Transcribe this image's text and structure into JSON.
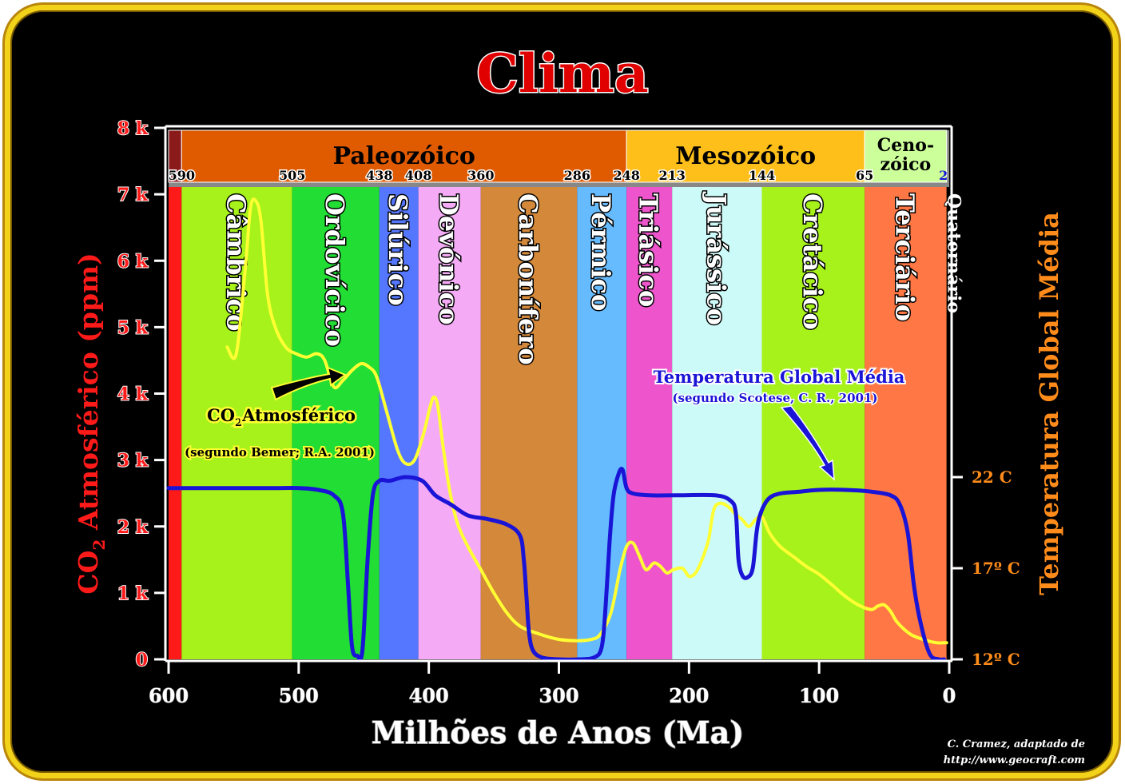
{
  "chart_data": {
    "type": "line",
    "title": "Clima",
    "xlabel": "Milhões de Anos (Ma)",
    "ylabel_left": "CO2 Atmosférico (ppm)",
    "ylabel_left_main": "CO",
    "ylabel_left_sub": "2",
    "ylabel_left_rest": " Atmosférico (ppm)",
    "ylabel_right": "Temperatura Global Média",
    "xlim": [
      600,
      0
    ],
    "ylim": [
      0,
      8000
    ],
    "temp_lim": [
      12,
      22
    ],
    "x_ticks": [
      {
        "v": 600,
        "label": "600"
      },
      {
        "v": 500,
        "label": "500"
      },
      {
        "v": 400,
        "label": "400"
      },
      {
        "v": 300,
        "label": "300"
      },
      {
        "v": 200,
        "label": "200"
      },
      {
        "v": 100,
        "label": "100"
      },
      {
        "v": 0,
        "label": "0"
      }
    ],
    "y_ticks": [
      {
        "v": 0,
        "label": "0"
      },
      {
        "v": 1000,
        "label": "1 k"
      },
      {
        "v": 2000,
        "label": "2 k"
      },
      {
        "v": 3000,
        "label": "3 k"
      },
      {
        "v": 4000,
        "label": "4 k"
      },
      {
        "v": 5000,
        "label": "5 k"
      },
      {
        "v": 6000,
        "label": "6 k"
      },
      {
        "v": 7000,
        "label": "7 k"
      },
      {
        "v": 8000,
        "label": "8 k"
      }
    ],
    "temp_ticks": [
      {
        "v": 12,
        "label": "12º C"
      },
      {
        "v": 17,
        "label": "17º C"
      },
      {
        "v": 22,
        "label": "22 C"
      }
    ],
    "eras": [
      {
        "name": "",
        "from": 600,
        "to": 590,
        "color": "#8b1a1a"
      },
      {
        "name": "Paleozóico",
        "from": 590,
        "to": 248,
        "color": "#e05a00"
      },
      {
        "name": "Mesozóico",
        "from": 248,
        "to": 65,
        "color": "#ffbf1a"
      },
      {
        "name": "Ceno-zóico",
        "line1": "Ceno-",
        "line2": "zóico",
        "from": 65,
        "to": 2,
        "color": "#ccff99"
      }
    ],
    "boundaries": [
      {
        "v": 590,
        "label": "590"
      },
      {
        "v": 505,
        "label": "505"
      },
      {
        "v": 438,
        "label": "438"
      },
      {
        "v": 408,
        "label": "408"
      },
      {
        "v": 360,
        "label": "360"
      },
      {
        "v": 286,
        "label": "286"
      },
      {
        "v": 248,
        "label": "248"
      },
      {
        "v": 213,
        "label": "213"
      },
      {
        "v": 144,
        "label": "144"
      },
      {
        "v": 65,
        "label": "65"
      },
      {
        "v": 2,
        "label": "2"
      }
    ],
    "periods": [
      {
        "name": "",
        "from": 600,
        "to": 590,
        "color": "#ff1a1a"
      },
      {
        "name": "Câmbrico",
        "from": 590,
        "to": 505,
        "color": "#a6f21a"
      },
      {
        "name": "Ordovícico",
        "from": 505,
        "to": 438,
        "color": "#22dd33"
      },
      {
        "name": "Silúrico",
        "from": 438,
        "to": 408,
        "color": "#5577ff"
      },
      {
        "name": "Devónico",
        "from": 408,
        "to": 360,
        "color": "#f5aaf5"
      },
      {
        "name": "Carbonífero",
        "from": 360,
        "to": 286,
        "color": "#d4883a"
      },
      {
        "name": "Pérmico",
        "from": 286,
        "to": 248,
        "color": "#66bbff"
      },
      {
        "name": "Triásico",
        "from": 248,
        "to": 213,
        "color": "#ee55cc"
      },
      {
        "name": "Jurássico",
        "from": 213,
        "to": 144,
        "color": "#ccfaf8"
      },
      {
        "name": "Cretácico",
        "from": 144,
        "to": 65,
        "color": "#a6f21a"
      },
      {
        "name": "Terciário",
        "from": 65,
        "to": 2,
        "color": "#ff7744"
      },
      {
        "name": "Quaternário",
        "from": 2,
        "to": 0,
        "color": "#000000"
      }
    ],
    "series": [
      {
        "name": "CO2Atmosférico",
        "name_main": "CO",
        "name_sub": "2",
        "name_rest": "Atmosférico",
        "source": "(segundo Bemer; R.A. 2001)",
        "color": "#ffff33",
        "axis": "left",
        "points": [
          [
            555,
            4700
          ],
          [
            548,
            4600
          ],
          [
            541,
            5900
          ],
          [
            537,
            6800
          ],
          [
            533,
            6900
          ],
          [
            529,
            6600
          ],
          [
            524,
            5500
          ],
          [
            518,
            5000
          ],
          [
            510,
            4700
          ],
          [
            502,
            4600
          ],
          [
            494,
            4550
          ],
          [
            486,
            4600
          ],
          [
            480,
            4500
          ],
          [
            473,
            4100
          ],
          [
            466,
            4200
          ],
          [
            459,
            4350
          ],
          [
            452,
            4450
          ],
          [
            446,
            4400
          ],
          [
            440,
            4250
          ],
          [
            432,
            3700
          ],
          [
            424,
            3150
          ],
          [
            418,
            2950
          ],
          [
            411,
            3000
          ],
          [
            404,
            3400
          ],
          [
            399,
            3800
          ],
          [
            396,
            3950
          ],
          [
            393,
            3800
          ],
          [
            389,
            3200
          ],
          [
            384,
            2550
          ],
          [
            378,
            2050
          ],
          [
            370,
            1700
          ],
          [
            360,
            1350
          ],
          [
            350,
            1000
          ],
          [
            340,
            700
          ],
          [
            330,
            500
          ],
          [
            315,
            380
          ],
          [
            300,
            300
          ],
          [
            285,
            280
          ],
          [
            275,
            300
          ],
          [
            268,
            380
          ],
          [
            260,
            700
          ],
          [
            253,
            1350
          ],
          [
            248,
            1700
          ],
          [
            243,
            1750
          ],
          [
            238,
            1550
          ],
          [
            233,
            1350
          ],
          [
            227,
            1450
          ],
          [
            222,
            1400
          ],
          [
            217,
            1300
          ],
          [
            212,
            1350
          ],
          [
            205,
            1370
          ],
          [
            200,
            1250
          ],
          [
            195,
            1300
          ],
          [
            190,
            1500
          ],
          [
            185,
            1800
          ],
          [
            181,
            2250
          ],
          [
            176,
            2350
          ],
          [
            170,
            2300
          ],
          [
            165,
            2200
          ],
          [
            159,
            2100
          ],
          [
            154,
            2000
          ],
          [
            149,
            2100
          ],
          [
            144,
            2150
          ],
          [
            138,
            1900
          ],
          [
            130,
            1700
          ],
          [
            120,
            1550
          ],
          [
            110,
            1400
          ],
          [
            100,
            1280
          ],
          [
            90,
            1120
          ],
          [
            80,
            950
          ],
          [
            70,
            820
          ],
          [
            60,
            750
          ],
          [
            55,
            800
          ],
          [
            50,
            820
          ],
          [
            45,
            720
          ],
          [
            40,
            560
          ],
          [
            30,
            380
          ],
          [
            20,
            300
          ],
          [
            10,
            250
          ],
          [
            2,
            250
          ]
        ]
      },
      {
        "name": "Temperatura Global Média",
        "source": "(segundo Scotese, C. R., 2001)",
        "color": "#1a14d6",
        "axis": "right",
        "points": [
          [
            600,
            21.4
          ],
          [
            560,
            21.4
          ],
          [
            520,
            21.4
          ],
          [
            500,
            21.4
          ],
          [
            485,
            21.3
          ],
          [
            473,
            21.0
          ],
          [
            466,
            20.0
          ],
          [
            462,
            16.0
          ],
          [
            459,
            12.7
          ],
          [
            455,
            12.2
          ],
          [
            451,
            12.5
          ],
          [
            447,
            17.5
          ],
          [
            443,
            21.0
          ],
          [
            438,
            21.8
          ],
          [
            430,
            21.8
          ],
          [
            418,
            22.0
          ],
          [
            405,
            21.8
          ],
          [
            395,
            21.0
          ],
          [
            383,
            20.5
          ],
          [
            370,
            19.9
          ],
          [
            355,
            19.7
          ],
          [
            340,
            19.4
          ],
          [
            330,
            18.8
          ],
          [
            327,
            17.5
          ],
          [
            325,
            15.5
          ],
          [
            323,
            13.5
          ],
          [
            320,
            12.5
          ],
          [
            313,
            12.1
          ],
          [
            300,
            12.0
          ],
          [
            285,
            12.0
          ],
          [
            273,
            12.1
          ],
          [
            267,
            12.7
          ],
          [
            264,
            15.0
          ],
          [
            261,
            18.5
          ],
          [
            258,
            21.0
          ],
          [
            254,
            22.2
          ],
          [
            251,
            22.4
          ],
          [
            248,
            21.4
          ],
          [
            243,
            21.1
          ],
          [
            230,
            21.0
          ],
          [
            210,
            21.0
          ],
          [
            180,
            21.0
          ],
          [
            168,
            20.7
          ],
          [
            164,
            20.0
          ],
          [
            162,
            17.5
          ],
          [
            159,
            16.6
          ],
          [
            155,
            16.5
          ],
          [
            151,
            17.0
          ],
          [
            148,
            19.0
          ],
          [
            145,
            20.0
          ],
          [
            139,
            20.8
          ],
          [
            130,
            21.1
          ],
          [
            115,
            21.2
          ],
          [
            100,
            21.3
          ],
          [
            80,
            21.3
          ],
          [
            60,
            21.2
          ],
          [
            45,
            21.0
          ],
          [
            38,
            20.5
          ],
          [
            32,
            19.0
          ],
          [
            27,
            16.0
          ],
          [
            22,
            14.0
          ],
          [
            15,
            12.3
          ],
          [
            8,
            12.0
          ],
          [
            4,
            12.0
          ]
        ]
      }
    ],
    "annotations": {
      "co2_label": "CO2Atmosférico",
      "co2_source": "(segundo Bemer; R.A. 2001)",
      "temp_label": "Temperatura Global Média",
      "temp_source": "(segundo Scotese, C. R., 2001)"
    }
  },
  "credit": {
    "line1": "C. Cramez, adaptado de",
    "line2": "http://www.geocraft.com"
  }
}
